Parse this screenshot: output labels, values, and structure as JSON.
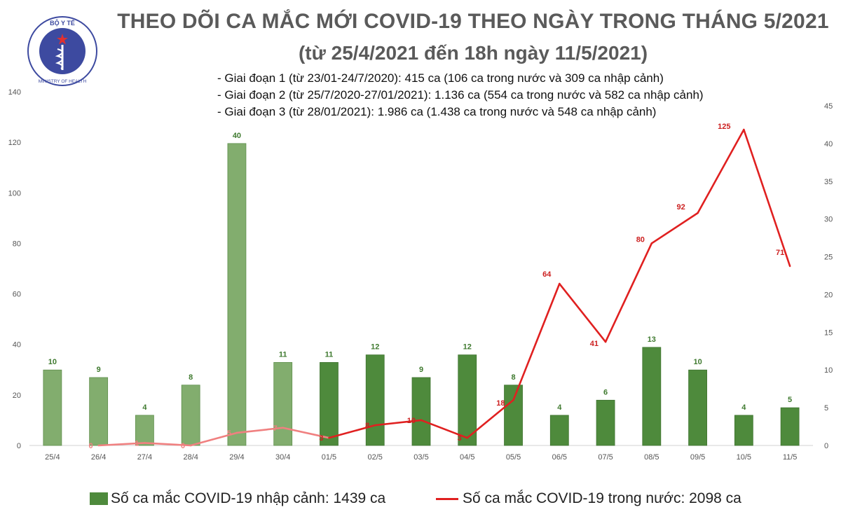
{
  "header": {
    "title_line1": "THEO DÕI CA MẮC MỚI COVID-19 THEO NGÀY TRONG THÁNG 5/2021",
    "title_line2": "(từ 25/4/2021 đến 18h ngày 11/5/2021)"
  },
  "notes": [
    "- Giai đoạn 1 (từ 23/01-24/7/2020): 415 ca (106 ca trong nước và 309 ca nhập cảnh)",
    "- Giai đoạn 2 (từ 25/7/2020-27/01/2021): 1.136 ca (554 ca trong nước và 582 ca nhập cảnh)",
    "- Giai đoạn 3 (từ 28/01/2021): 1.986 ca (1.438 ca trong nước và 548 ca nhập cảnh)"
  ],
  "logo": {
    "top_text": "BỘ Y TẾ",
    "bottom_text": "MINISTRY OF HEALTH"
  },
  "legend": {
    "bars_label": "Số ca mắc COVID-19 nhập cảnh: 1439 ca",
    "line_label": "Số ca mắc COVID-19 trong nước: 2098 ca"
  },
  "colors": {
    "bar_light": "#82ad6e",
    "bar_dark": "#4e8a3c",
    "line_light": "#f08080",
    "line_dark": "#e02020",
    "label_green": "#3f7a2f",
    "label_red": "#cc1f1f",
    "axis_text": "#555555"
  },
  "chart_data": {
    "type": "bar",
    "categories": [
      "25/4",
      "26/4",
      "27/4",
      "28/4",
      "29/4",
      "30/4",
      "01/5",
      "02/5",
      "03/5",
      "04/5",
      "05/5",
      "06/5",
      "07/5",
      "08/5",
      "09/5",
      "10/5",
      "11/5"
    ],
    "series": [
      {
        "name": "Số ca mắc COVID-19 nhập cảnh: 1439 ca",
        "type": "bar",
        "axis": "right",
        "values": [
          10,
          9,
          4,
          8,
          40,
          11,
          11,
          12,
          9,
          12,
          8,
          4,
          6,
          13,
          10,
          4,
          5
        ]
      },
      {
        "name": "Số ca mắc COVID-19 trong nước: 2098 ca",
        "type": "line",
        "axis": "left",
        "values": [
          null,
          0,
          1,
          0,
          5,
          7,
          3,
          8,
          10,
          3,
          18,
          64,
          41,
          80,
          92,
          125,
          71
        ]
      }
    ],
    "y_left": {
      "min": 0,
      "max": 140,
      "ticks": [
        0,
        20,
        40,
        60,
        80,
        100,
        120,
        140
      ]
    },
    "y_right": {
      "min": 0,
      "max": 45,
      "ticks": [
        0,
        5,
        10,
        15,
        20,
        25,
        30,
        35,
        40,
        45
      ]
    },
    "grid": false,
    "legend_position": "bottom"
  }
}
